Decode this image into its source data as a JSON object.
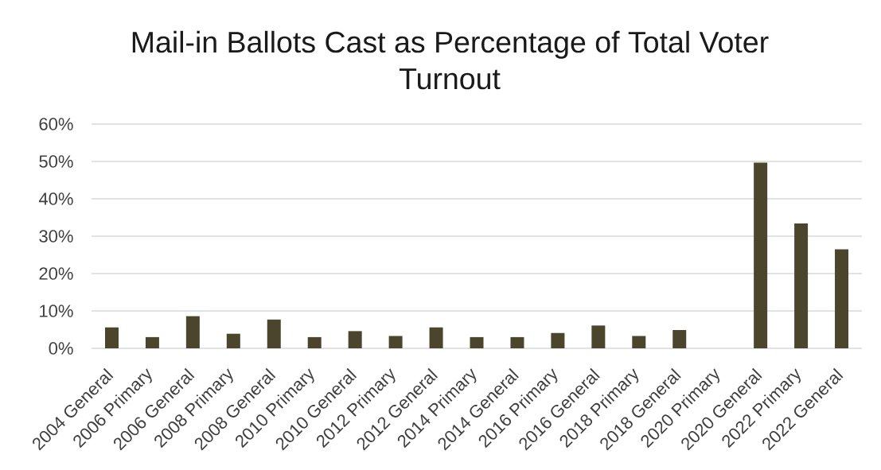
{
  "chart_data": {
    "type": "bar",
    "title": "Mail-in Ballots Cast as Percentage of Total Voter Turnout",
    "categories": [
      "2004 General",
      "2006 Primary",
      "2006 General",
      "2008 Primary",
      "2008 General",
      "2010 Primary",
      "2010 General",
      "2012 Primary",
      "2012 General",
      "2014 Primary",
      "2014 General",
      "2016 Primary",
      "2016 General",
      "2018 Primary",
      "2018 General",
      "2020 Primary",
      "2020 General",
      "2022 Primary",
      "2022 General"
    ],
    "values": [
      5.6,
      3.0,
      8.6,
      3.9,
      7.7,
      3.0,
      4.6,
      3.3,
      5.6,
      3.0,
      3.0,
      4.1,
      6.1,
      3.3,
      4.9,
      null,
      49.7,
      33.4,
      26.5
    ],
    "color": "#4b452d",
    "ylim": [
      0,
      60
    ],
    "yticks": [
      {
        "value": 0,
        "label": "0%"
      },
      {
        "value": 10,
        "label": "10%"
      },
      {
        "value": 20,
        "label": "20%"
      },
      {
        "value": 30,
        "label": "30%"
      },
      {
        "value": 40,
        "label": "40%"
      },
      {
        "value": 50,
        "label": "50%"
      },
      {
        "value": 60,
        "label": "60%"
      }
    ],
    "grid": "y"
  }
}
